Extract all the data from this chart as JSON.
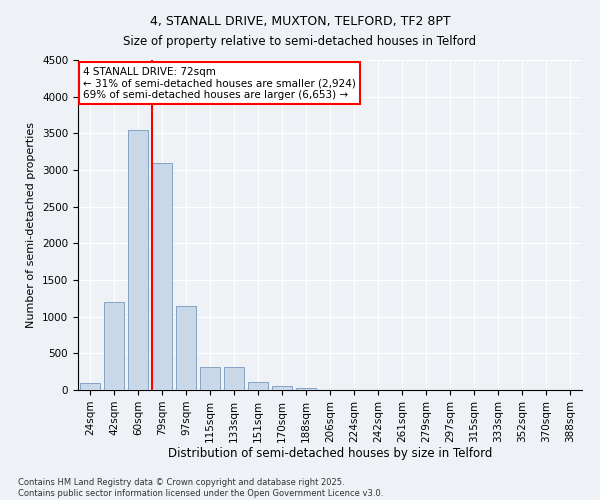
{
  "title1": "4, STANALL DRIVE, MUXTON, TELFORD, TF2 8PT",
  "title2": "Size of property relative to semi-detached houses in Telford",
  "xlabel": "Distribution of semi-detached houses by size in Telford",
  "ylabel": "Number of semi-detached properties",
  "categories": [
    "24sqm",
    "42sqm",
    "60sqm",
    "79sqm",
    "97sqm",
    "115sqm",
    "133sqm",
    "151sqm",
    "170sqm",
    "188sqm",
    "206sqm",
    "224sqm",
    "242sqm",
    "261sqm",
    "279sqm",
    "297sqm",
    "315sqm",
    "333sqm",
    "352sqm",
    "370sqm",
    "388sqm"
  ],
  "values": [
    100,
    1200,
    3550,
    3100,
    1150,
    320,
    320,
    110,
    60,
    30,
    5,
    0,
    0,
    0,
    0,
    0,
    0,
    0,
    0,
    0,
    0
  ],
  "bar_color": "#c8d8e8",
  "bar_edge_color": "#7799bb",
  "vline_x_index": 2.57,
  "vline_color": "red",
  "annotation_title": "4 STANALL DRIVE: 72sqm",
  "annotation_line1": "← 31% of semi-detached houses are smaller (2,924)",
  "annotation_line2": "69% of semi-detached houses are larger (6,653) →",
  "ylim": [
    0,
    4500
  ],
  "yticks": [
    0,
    500,
    1000,
    1500,
    2000,
    2500,
    3000,
    3500,
    4000,
    4500
  ],
  "footer1": "Contains HM Land Registry data © Crown copyright and database right 2025.",
  "footer2": "Contains public sector information licensed under the Open Government Licence v3.0.",
  "bg_color": "#eef2f7",
  "plot_bg_color": "#eef2f7",
  "title1_fontsize": 9,
  "title2_fontsize": 8.5,
  "ylabel_fontsize": 8,
  "xlabel_fontsize": 8.5,
  "tick_fontsize": 7.5,
  "footer_fontsize": 6,
  "annot_fontsize": 7.5
}
